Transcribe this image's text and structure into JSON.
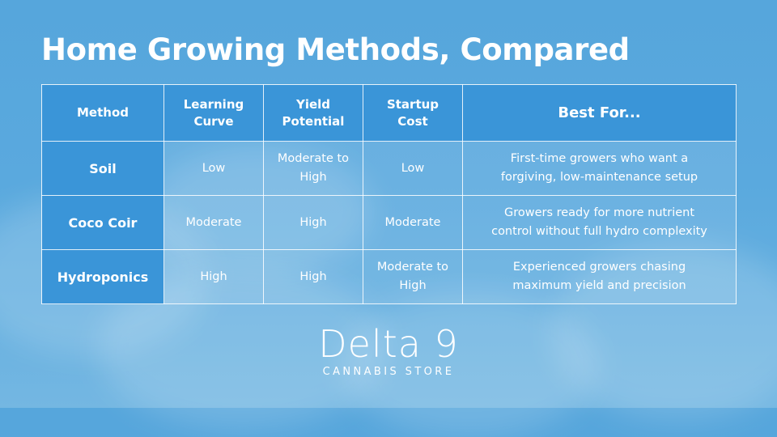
{
  "title": "Home Growing Methods, Compared",
  "table": {
    "headers": [
      [
        "Method"
      ],
      [
        "Learning",
        "Curve"
      ],
      [
        "Yield",
        "Potential"
      ],
      [
        "Startup",
        "Cost"
      ],
      [
        "Best For..."
      ]
    ],
    "rows": [
      {
        "method": "Soil",
        "learning_curve": [
          "Low"
        ],
        "yield_potential": [
          "Moderate to",
          "High"
        ],
        "startup_cost": [
          "Low"
        ],
        "best_for": [
          "First-time growers who want a",
          "forgiving, low-maintenance setup"
        ]
      },
      {
        "method": "Coco Coir",
        "learning_curve": [
          "Moderate"
        ],
        "yield_potential": [
          "High"
        ],
        "startup_cost": [
          "Moderate"
        ],
        "best_for": [
          "Growers ready for more nutrient",
          "control without full hydro complexity"
        ]
      },
      {
        "method": "Hydroponics",
        "learning_curve": [
          "High"
        ],
        "yield_potential": [
          "High"
        ],
        "startup_cost": [
          "Moderate to",
          "High"
        ],
        "best_for": [
          "Experienced growers chasing",
          "maximum yield and precision"
        ]
      }
    ]
  },
  "logo": {
    "name": "Delta 9",
    "tagline": "CANNABIS STORE"
  },
  "colors": {
    "background": "#5aa9de",
    "header_cell": "#3a95d8",
    "text": "#ffffff"
  }
}
